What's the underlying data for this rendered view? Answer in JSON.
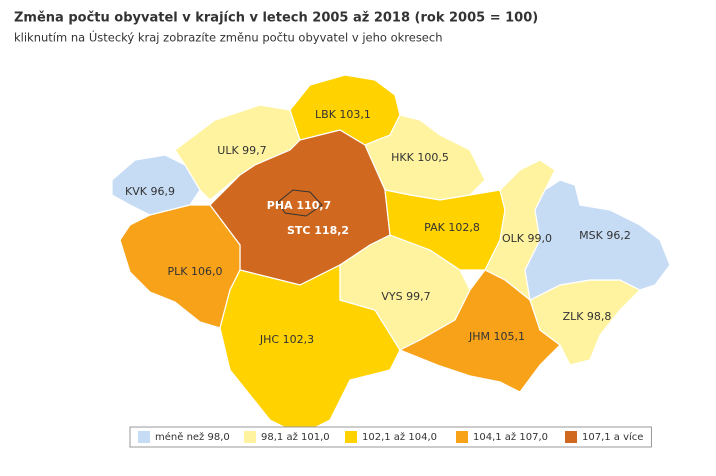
{
  "title": "Změna počtu obyvatel v krajích v letech 2005 až 2018 (rok 2005 = 100)",
  "subtitle": "kliknutím na Ústecký kraj zobrazíte změnu počtu obyvatel v jeho okresech",
  "regions": [
    {
      "label": "KVK 96,9",
      "color": "#c6dcf5"
    },
    {
      "label": "ULK 99,7",
      "color": "#fff3a0"
    },
    {
      "label": "LBK 103,1",
      "color": "#ffd200"
    },
    {
      "label": "HKK 100,5",
      "color": "#fff3a0"
    },
    {
      "label": "STC 118,2",
      "color": "#d0691f"
    },
    {
      "label": "PHA 110,7",
      "color": "#d0691f"
    },
    {
      "label": "PLK 106,0",
      "color": "#f8a21a"
    },
    {
      "label": "JHC 102,3",
      "color": "#ffd200"
    },
    {
      "label": "VYS 99,7",
      "color": "#fff3a0"
    },
    {
      "label": "PAK 102,8",
      "color": "#ffd200"
    },
    {
      "label": "OLK 99,0",
      "color": "#fff3a0"
    },
    {
      "label": "JHM 105,1",
      "color": "#f8a21a"
    },
    {
      "label": "ZLK 98,8",
      "color": "#fff3a0"
    },
    {
      "label": "MSK 96,2",
      "color": "#c6dcf5"
    }
  ],
  "legend": [
    {
      "label": "méně než 98,0",
      "color": "#c6dcf5"
    },
    {
      "label": "98,1 až 101,0",
      "color": "#fff3a0"
    },
    {
      "label": "102,1 až 104,0",
      "color": "#ffd200"
    },
    {
      "label": "104,1 až 107,0",
      "color": "#f8a21a"
    },
    {
      "label": "107,1 a více",
      "color": "#d0691f"
    }
  ]
}
